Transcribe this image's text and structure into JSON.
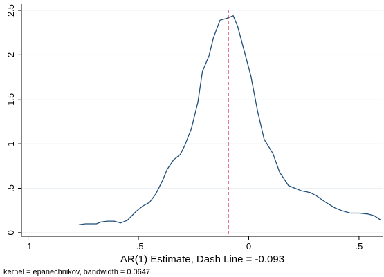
{
  "chart_data": {
    "type": "line",
    "xlabel": "AR(1) Estimate, Dash Line = -0.093",
    "ylabel": "",
    "note": "kernel = epanechnikov, bandwidth = 0.0647",
    "xlim": [
      -1.03,
      0.61
    ],
    "ylim": [
      -0.04,
      2.57
    ],
    "x_ticks": [
      -1,
      -0.5,
      0,
      0.5
    ],
    "x_tick_labels": [
      "-1",
      "-.5",
      "0",
      ".5"
    ],
    "y_ticks": [
      0,
      0.5,
      1,
      1.5,
      2,
      2.5
    ],
    "y_tick_labels": [
      "0",
      ".5",
      "1",
      "1.5",
      "2",
      "2.5"
    ],
    "grid": "horizontal",
    "reference_line": {
      "x": -0.093,
      "style": "dashed",
      "color": "#d6224f"
    },
    "series": [
      {
        "color": "#1f4e79",
        "x": [
          -0.77,
          -0.74,
          -0.72,
          -0.69,
          -0.67,
          -0.64,
          -0.61,
          -0.58,
          -0.55,
          -0.51,
          -0.48,
          -0.45,
          -0.42,
          -0.39,
          -0.37,
          -0.34,
          -0.31,
          -0.29,
          -0.26,
          -0.23,
          -0.21,
          -0.18,
          -0.16,
          -0.13,
          -0.1,
          -0.07,
          -0.05,
          -0.02,
          0.01,
          0.04,
          0.07,
          0.11,
          0.14,
          0.18,
          0.21,
          0.24,
          0.28,
          0.31,
          0.35,
          0.39,
          0.42,
          0.46,
          0.5,
          0.54,
          0.57,
          0.6
        ],
        "y": [
          0.09,
          0.1,
          0.1,
          0.1,
          0.12,
          0.13,
          0.13,
          0.11,
          0.14,
          0.24,
          0.3,
          0.34,
          0.44,
          0.59,
          0.71,
          0.82,
          0.88,
          0.98,
          1.17,
          1.47,
          1.81,
          1.99,
          2.19,
          2.39,
          2.41,
          2.44,
          2.32,
          2.04,
          1.76,
          1.37,
          1.05,
          0.89,
          0.68,
          0.53,
          0.5,
          0.47,
          0.45,
          0.41,
          0.34,
          0.28,
          0.25,
          0.22,
          0.22,
          0.21,
          0.19,
          0.14
        ]
      }
    ]
  }
}
